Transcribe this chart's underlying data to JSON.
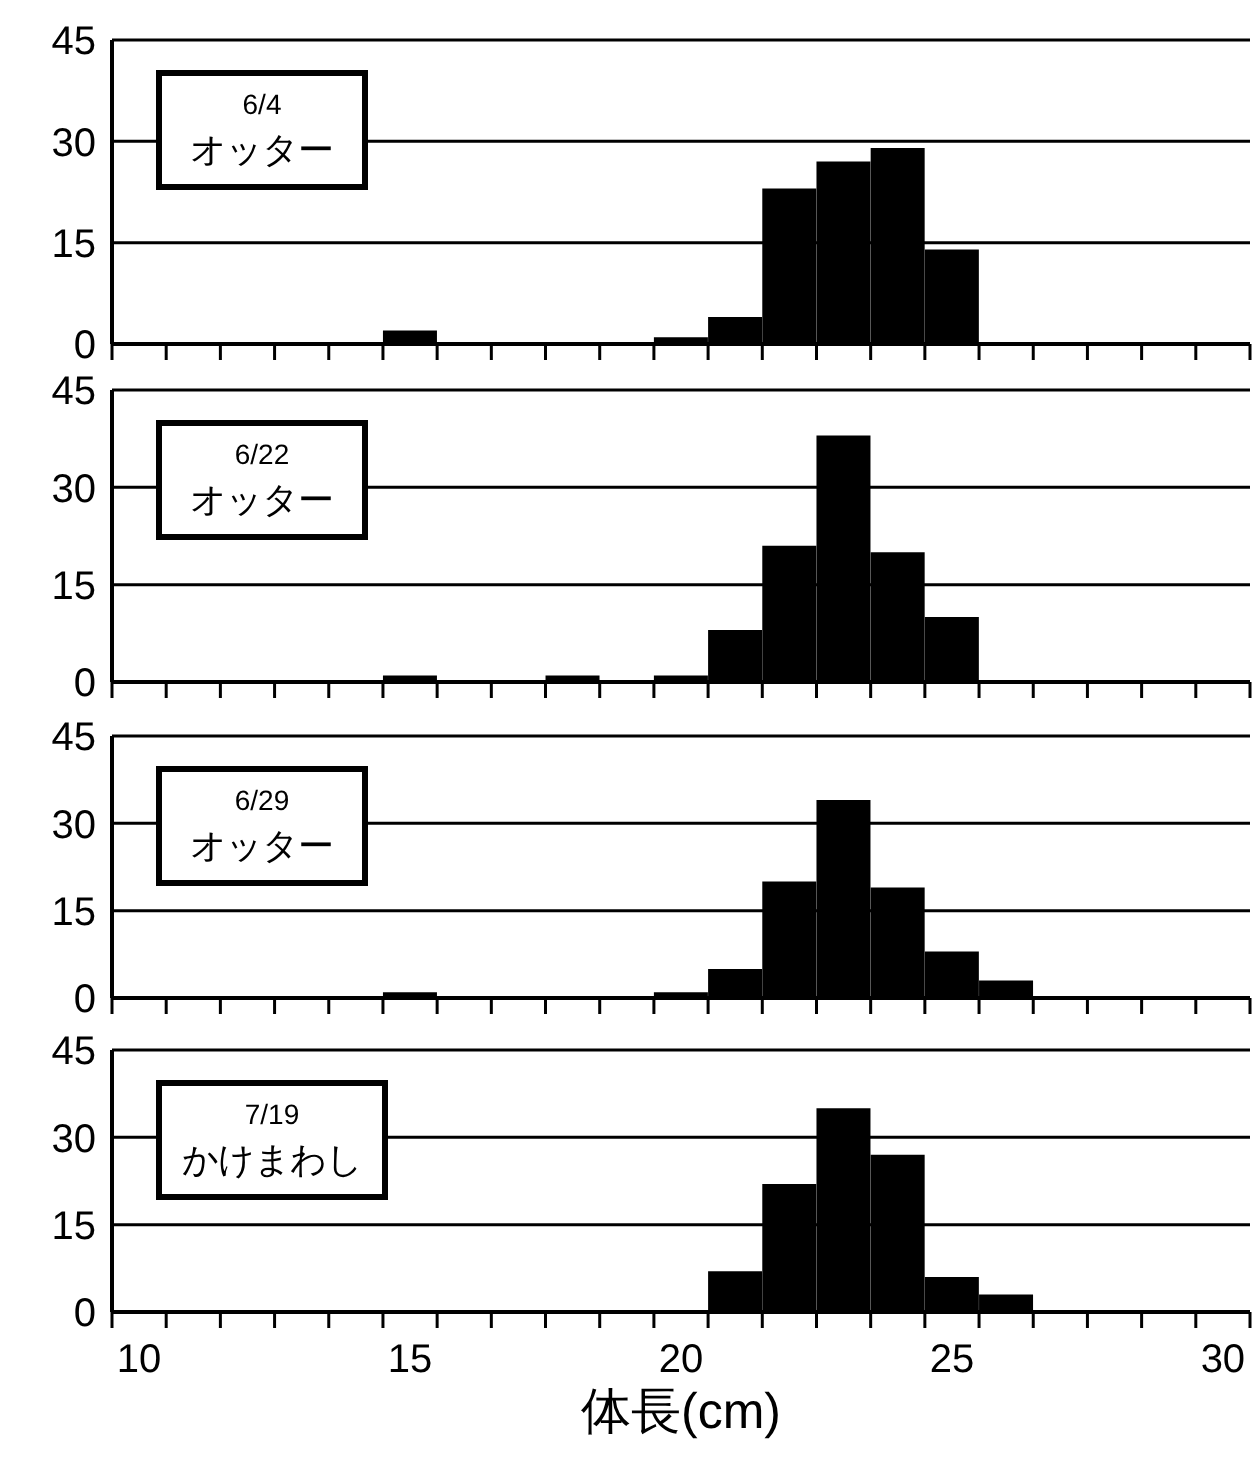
{
  "chart_data": [
    {
      "type": "bar",
      "categories": [
        "10",
        null,
        null,
        null,
        null,
        "15",
        null,
        null,
        null,
        null,
        "20",
        null,
        null,
        null,
        null,
        "25",
        null,
        null,
        null,
        null,
        "30"
      ],
      "values": [
        0,
        0,
        0,
        0,
        0,
        2,
        0,
        0,
        0,
        0,
        1,
        4,
        23,
        27,
        29,
        14,
        0,
        0,
        0,
        0,
        0
      ],
      "color": "#000000",
      "ylim": [
        0,
        45
      ],
      "yticks": [
        0,
        15,
        30,
        45
      ],
      "grid": "y",
      "tick_labels": "y",
      "annotations": [
        "6/4",
        "オッター"
      ]
    },
    {
      "type": "bar",
      "categories": [
        "10",
        null,
        null,
        null,
        null,
        "15",
        null,
        null,
        null,
        null,
        "20",
        null,
        null,
        null,
        null,
        "25",
        null,
        null,
        null,
        null,
        "30"
      ],
      "values": [
        0,
        0,
        0,
        0,
        0,
        1,
        0,
        0,
        1,
        0,
        1,
        8,
        21,
        38,
        20,
        10,
        0,
        0,
        0,
        0,
        0
      ],
      "color": "#000000",
      "ylim": [
        0,
        45
      ],
      "yticks": [
        0,
        15,
        30,
        45
      ],
      "grid": "y",
      "tick_labels": "y",
      "annotations": [
        "6/22",
        "オッター"
      ]
    },
    {
      "type": "bar",
      "categories": [
        "10",
        null,
        null,
        null,
        null,
        "15",
        null,
        null,
        null,
        null,
        "20",
        null,
        null,
        null,
        null,
        "25",
        null,
        null,
        null,
        null,
        "30"
      ],
      "values": [
        0,
        0,
        0,
        0,
        0,
        1,
        0,
        0,
        0,
        0,
        1,
        5,
        20,
        34,
        19,
        8,
        3,
        0,
        0,
        0,
        0
      ],
      "color": "#000000",
      "ylim": [
        0,
        45
      ],
      "yticks": [
        0,
        15,
        30,
        45
      ],
      "grid": "y",
      "tick_labels": "y",
      "annotations": [
        "6/29",
        "オッター"
      ]
    },
    {
      "type": "bar",
      "categories": [
        "10",
        null,
        null,
        null,
        null,
        "15",
        null,
        null,
        null,
        null,
        "20",
        null,
        null,
        null,
        null,
        "25",
        null,
        null,
        null,
        null,
        "30"
      ],
      "values": [
        0,
        0,
        0,
        0,
        0,
        0,
        0,
        0,
        0,
        0,
        0,
        7,
        22,
        35,
        27,
        6,
        3,
        0,
        0,
        0,
        0
      ],
      "color": "#000000",
      "ylim": [
        0,
        45
      ],
      "yticks": [
        0,
        15,
        30,
        45
      ],
      "grid": "y",
      "xlabel": "体長(cm)",
      "annotations": [
        "7/19",
        "かけまわし"
      ]
    }
  ]
}
